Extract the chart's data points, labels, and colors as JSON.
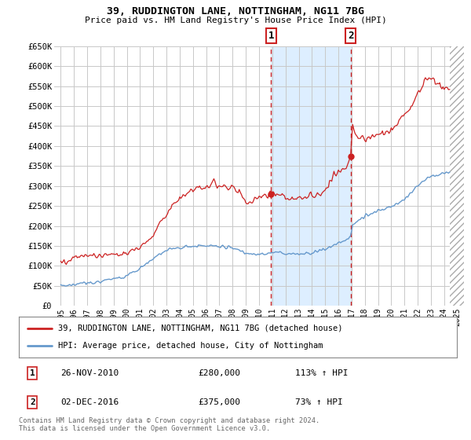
{
  "title": "39, RUDDINGTON LANE, NOTTINGHAM, NG11 7BG",
  "subtitle": "Price paid vs. HM Land Registry's House Price Index (HPI)",
  "ylim": [
    0,
    650000
  ],
  "yticks": [
    0,
    50000,
    100000,
    150000,
    200000,
    250000,
    300000,
    350000,
    400000,
    450000,
    500000,
    550000,
    600000,
    650000
  ],
  "ytick_labels": [
    "£0",
    "£50K",
    "£100K",
    "£150K",
    "£200K",
    "£250K",
    "£300K",
    "£350K",
    "£400K",
    "£450K",
    "£500K",
    "£550K",
    "£600K",
    "£650K"
  ],
  "xlim_start": 1994.5,
  "xlim_end": 2025.5,
  "background_color": "#ffffff",
  "grid_color": "#c8c8c8",
  "sale1_date": 2010.92,
  "sale1_price": 280000,
  "sale1_label": "1",
  "sale2_date": 2016.92,
  "sale2_price": 375000,
  "sale2_label": "2",
  "red_color": "#cc2222",
  "blue_color": "#6699cc",
  "shade_color": "#ddeeff",
  "hatch_start": 2024.42,
  "legend_line1": "39, RUDDINGTON LANE, NOTTINGHAM, NG11 7BG (detached house)",
  "legend_line2": "HPI: Average price, detached house, City of Nottingham",
  "table_row1": [
    "1",
    "26-NOV-2010",
    "£280,000",
    "113% ↑ HPI"
  ],
  "table_row2": [
    "2",
    "02-DEC-2016",
    "£375,000",
    "73% ↑ HPI"
  ],
  "footer": "Contains HM Land Registry data © Crown copyright and database right 2024.\nThis data is licensed under the Open Government Licence v3.0."
}
